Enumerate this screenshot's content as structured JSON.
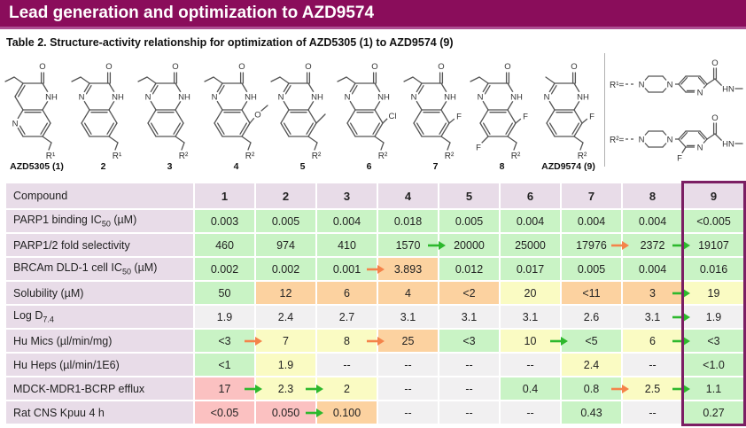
{
  "header": {
    "title": "Lead generation and optimization to AZD9574"
  },
  "caption": "Table 2. Structure-activity relationship for optimization of AZD5305 (1) to AZD9574 (9)",
  "structures": [
    {
      "name": "AZD5305 (1)",
      "core": "naphthyridinone",
      "alkyl": "ethyl",
      "substituent": "",
      "substituent2": "",
      "r_label": "R¹"
    },
    {
      "name": "2",
      "core": "quinoxalinone",
      "alkyl": "ethyl",
      "substituent": "",
      "substituent2": "",
      "r_label": "R¹"
    },
    {
      "name": "3",
      "core": "quinoxalinone",
      "alkyl": "ethyl",
      "substituent": "",
      "substituent2": "",
      "r_label": "R²"
    },
    {
      "name": "4",
      "core": "quinoxalinone",
      "alkyl": "ethyl",
      "substituent": "OMe",
      "substituent2": "",
      "r_label": "R²"
    },
    {
      "name": "5",
      "core": "quinoxalinone",
      "alkyl": "ethyl",
      "substituent": "Me",
      "substituent2": "",
      "r_label": "R²"
    },
    {
      "name": "6",
      "core": "quinoxalinone",
      "alkyl": "ethyl",
      "substituent": "Cl",
      "substituent2": "",
      "r_label": "R²"
    },
    {
      "name": "7",
      "core": "quinoxalinone",
      "alkyl": "ethyl",
      "substituent": "F",
      "substituent2": "",
      "r_label": "R²"
    },
    {
      "name": "8",
      "core": "quinoxalinone",
      "alkyl": "ethyl",
      "substituent": "F",
      "substituent2": "F",
      "r_label": "R²"
    },
    {
      "name": "AZD9574 (9)",
      "core": "quinoxalinone",
      "alkyl": "methyl",
      "substituent": "F",
      "substituent2": "",
      "r_label": "R²"
    }
  ],
  "r_groups": [
    {
      "label": "R¹=",
      "pyridine_substituent": "",
      "amide_text": "HN"
    },
    {
      "label": "R²=",
      "pyridine_substituent": "F",
      "amide_text": "HN"
    }
  ],
  "table": {
    "header_label": "Compound",
    "columns": [
      "1",
      "2",
      "3",
      "4",
      "5",
      "6",
      "7",
      "8",
      "9"
    ],
    "highlight_column": "9",
    "rows": [
      {
        "label": "PARP1 binding IC",
        "sub": "50",
        "after": " (µM)",
        "cells": [
          [
            "0.003",
            "g"
          ],
          [
            "0.005",
            "g"
          ],
          [
            "0.004",
            "g"
          ],
          [
            "0.018",
            "g"
          ],
          [
            "0.005",
            "g"
          ],
          [
            "0.004",
            "g"
          ],
          [
            "0.004",
            "g"
          ],
          [
            "0.004",
            "g"
          ],
          [
            "<0.005",
            "g"
          ]
        ]
      },
      {
        "label": "PARP1/2 fold selectivity",
        "sub": "",
        "after": "",
        "cells": [
          [
            "460",
            "g"
          ],
          [
            "974",
            "g"
          ],
          [
            "410",
            "g"
          ],
          [
            "1570",
            "g"
          ],
          [
            "20000",
            "g",
            "g"
          ],
          [
            "25000",
            "g"
          ],
          [
            "17976",
            "g"
          ],
          [
            "2372",
            "g",
            "o"
          ],
          [
            "19107",
            "g",
            "g"
          ]
        ]
      },
      {
        "label": "BRCAm DLD-1 cell IC",
        "sub": "50",
        "after": " (µM)",
        "cells": [
          [
            "0.002",
            "g"
          ],
          [
            "0.002",
            "g"
          ],
          [
            "0.001",
            "g"
          ],
          [
            "3.893",
            "o",
            "o"
          ],
          [
            "0.012",
            "g"
          ],
          [
            "0.017",
            "g"
          ],
          [
            "0.005",
            "g"
          ],
          [
            "0.004",
            "g"
          ],
          [
            "0.016",
            "g"
          ]
        ]
      },
      {
        "label": "Solubility (µM)",
        "sub": "",
        "after": "",
        "cells": [
          [
            "50",
            "g"
          ],
          [
            "12",
            "o"
          ],
          [
            "6",
            "o"
          ],
          [
            "4",
            "o"
          ],
          [
            "<2",
            "o"
          ],
          [
            "20",
            "y"
          ],
          [
            "<11",
            "o"
          ],
          [
            "3",
            "o"
          ],
          [
            "19",
            "y",
            "g"
          ]
        ]
      },
      {
        "label": "Log D",
        "sub": "7.4",
        "after": "",
        "cells": [
          [
            "1.9",
            "n"
          ],
          [
            "2.4",
            "n"
          ],
          [
            "2.7",
            "n"
          ],
          [
            "3.1",
            "n"
          ],
          [
            "3.1",
            "n"
          ],
          [
            "3.1",
            "n"
          ],
          [
            "2.6",
            "n"
          ],
          [
            "3.1",
            "n"
          ],
          [
            "1.9",
            "n",
            "g"
          ]
        ]
      },
      {
        "label": "Hu Mics (µl/min/mg)",
        "sub": "",
        "after": "",
        "cells": [
          [
            "<3",
            "g"
          ],
          [
            "7",
            "y",
            "o"
          ],
          [
            "8",
            "y"
          ],
          [
            "25",
            "o",
            "o"
          ],
          [
            "<3",
            "g"
          ],
          [
            "10",
            "y"
          ],
          [
            "<5",
            "g",
            "g"
          ],
          [
            "6",
            "y"
          ],
          [
            "<3",
            "g",
            "g"
          ]
        ]
      },
      {
        "label": "Hu Heps (µl/min/1E6)",
        "sub": "",
        "after": "",
        "cells": [
          [
            "<1",
            "g"
          ],
          [
            "1.9",
            "y"
          ],
          [
            "--",
            "n"
          ],
          [
            "--",
            "n"
          ],
          [
            "--",
            "n"
          ],
          [
            "--",
            "n"
          ],
          [
            "2.4",
            "y"
          ],
          [
            "--",
            "n"
          ],
          [
            "<1.0",
            "g"
          ]
        ]
      },
      {
        "label": "MDCK-MDR1-BCRP efflux",
        "sub": "",
        "after": "",
        "cells": [
          [
            "17",
            "r"
          ],
          [
            "2.3",
            "y",
            "g"
          ],
          [
            "2",
            "y",
            "g"
          ],
          [
            "--",
            "n"
          ],
          [
            "--",
            "n"
          ],
          [
            "0.4",
            "g"
          ],
          [
            "0.8",
            "g"
          ],
          [
            "2.5",
            "y",
            "o"
          ],
          [
            "1.1",
            "g",
            "g"
          ]
        ]
      },
      {
        "label": "Rat CNS Kpuu 4 h",
        "sub": "",
        "after": "",
        "cells": [
          [
            "<0.05",
            "r"
          ],
          [
            "0.050",
            "r"
          ],
          [
            "0.100",
            "o",
            "g"
          ],
          [
            "--",
            "n"
          ],
          [
            "--",
            "n"
          ],
          [
            "--",
            "n"
          ],
          [
            "0.43",
            "g"
          ],
          [
            "--",
            "n"
          ],
          [
            "0.27",
            "g"
          ]
        ]
      }
    ]
  },
  "colors": {
    "accent": "#8a0d5b",
    "accent_light": "#ad4f93",
    "header_cell": "#e8dce8",
    "cell_green": "#c9f3c5",
    "cell_yellow": "#fafbc3",
    "cell_orange": "#fcd2a0",
    "cell_red": "#fbc1c1",
    "cell_gray": "#f1f0f1",
    "arrow_green": "#2db82d",
    "arrow_orange": "#f4834a",
    "highlight_border": "#7b1e63"
  }
}
